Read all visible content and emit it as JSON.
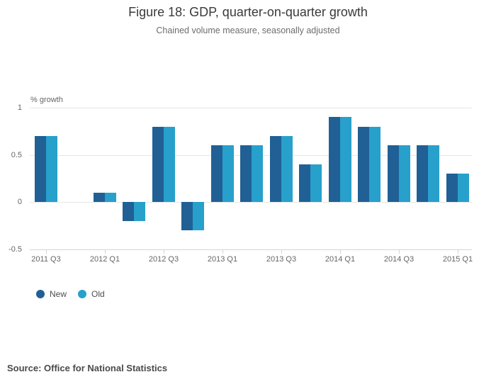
{
  "header": {
    "title": "Figure 18: GDP, quarter-on-quarter growth",
    "subtitle": "Chained volume measure, seasonally adjusted"
  },
  "chart_data": {
    "type": "bar",
    "title": "Figure 18: GDP, quarter-on-quarter growth",
    "subtitle": "Chained volume measure, seasonally adjusted",
    "ylabel": "% growth",
    "xlabel": "",
    "ylim": [
      -0.5,
      1
    ],
    "yticks": [
      1,
      0.5,
      0,
      -0.5
    ],
    "grid": true,
    "legend_position": "bottom-left",
    "categories": [
      "2011 Q3",
      "2011 Q4",
      "2012 Q1",
      "2012 Q2",
      "2012 Q3",
      "2012 Q4",
      "2013 Q1",
      "2013 Q2",
      "2013 Q3",
      "2013 Q4",
      "2014 Q1",
      "2014 Q2",
      "2014 Q3",
      "2014 Q4",
      "2015 Q1"
    ],
    "x_tick_labels": [
      "2011 Q3",
      "2012 Q1",
      "2012 Q3",
      "2013 Q1",
      "2013 Q3",
      "2014 Q1",
      "2014 Q3",
      "2015 Q1"
    ],
    "series": [
      {
        "name": "New",
        "color": "#206095",
        "values": [
          0.7,
          0.0,
          0.1,
          -0.2,
          0.8,
          -0.3,
          0.6,
          0.6,
          0.7,
          0.4,
          0.9,
          0.8,
          0.6,
          0.6,
          0.3
        ]
      },
      {
        "name": "Old",
        "color": "#27A0CC",
        "values": [
          0.7,
          0.0,
          0.1,
          -0.2,
          0.8,
          -0.3,
          0.6,
          0.6,
          0.7,
          0.4,
          0.9,
          0.8,
          0.6,
          0.6,
          0.3
        ]
      }
    ]
  },
  "footer": {
    "source": "Source: Office for National Statistics"
  }
}
